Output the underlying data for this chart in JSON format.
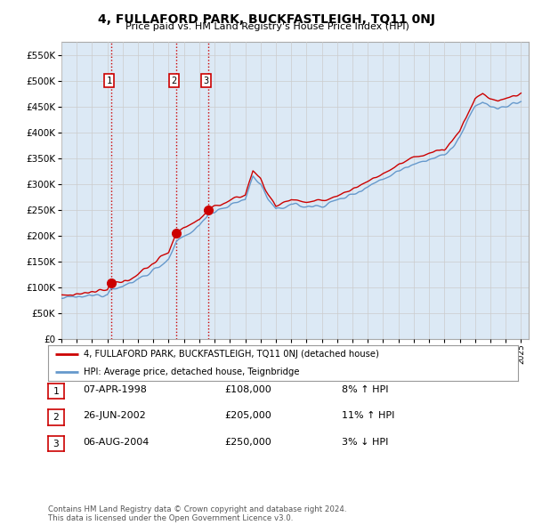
{
  "title": "4, FULLAFORD PARK, BUCKFASTLEIGH, TQ11 0NJ",
  "subtitle": "Price paid vs. HM Land Registry's House Price Index (HPI)",
  "ytick_values": [
    0,
    50000,
    100000,
    150000,
    200000,
    250000,
    300000,
    350000,
    400000,
    450000,
    500000,
    550000
  ],
  "ylim": [
    0,
    575000
  ],
  "xlim_start": 1995.0,
  "xlim_end": 2025.5,
  "sale_dates": [
    1998.25,
    2002.49,
    2004.59
  ],
  "sale_prices": [
    108000,
    205000,
    250000
  ],
  "sale_labels": [
    "1",
    "2",
    "3"
  ],
  "vline_color": "#cc0000",
  "vline_style": "--",
  "dot_color": "#cc0000",
  "hpi_color": "#6699cc",
  "price_color": "#cc0000",
  "chart_bg_color": "#dce9f5",
  "legend_label_price": "4, FULLAFORD PARK, BUCKFASTLEIGH, TQ11 0NJ (detached house)",
  "legend_label_hpi": "HPI: Average price, detached house, Teignbridge",
  "table_rows": [
    {
      "num": "1",
      "date": "07-APR-1998",
      "price": "£108,000",
      "change": "8% ↑ HPI"
    },
    {
      "num": "2",
      "date": "26-JUN-2002",
      "price": "£205,000",
      "change": "11% ↑ HPI"
    },
    {
      "num": "3",
      "date": "06-AUG-2004",
      "price": "£250,000",
      "change": "3% ↓ HPI"
    }
  ],
  "footer": "Contains HM Land Registry data © Crown copyright and database right 2024.\nThis data is licensed under the Open Government Licence v3.0.",
  "bg_color": "#ffffff",
  "grid_color": "#cccccc",
  "xticks": [
    1995,
    1996,
    1997,
    1998,
    1999,
    2000,
    2001,
    2002,
    2003,
    2004,
    2005,
    2006,
    2007,
    2008,
    2009,
    2010,
    2011,
    2012,
    2013,
    2014,
    2015,
    2016,
    2017,
    2018,
    2019,
    2020,
    2021,
    2022,
    2023,
    2024,
    2025
  ]
}
